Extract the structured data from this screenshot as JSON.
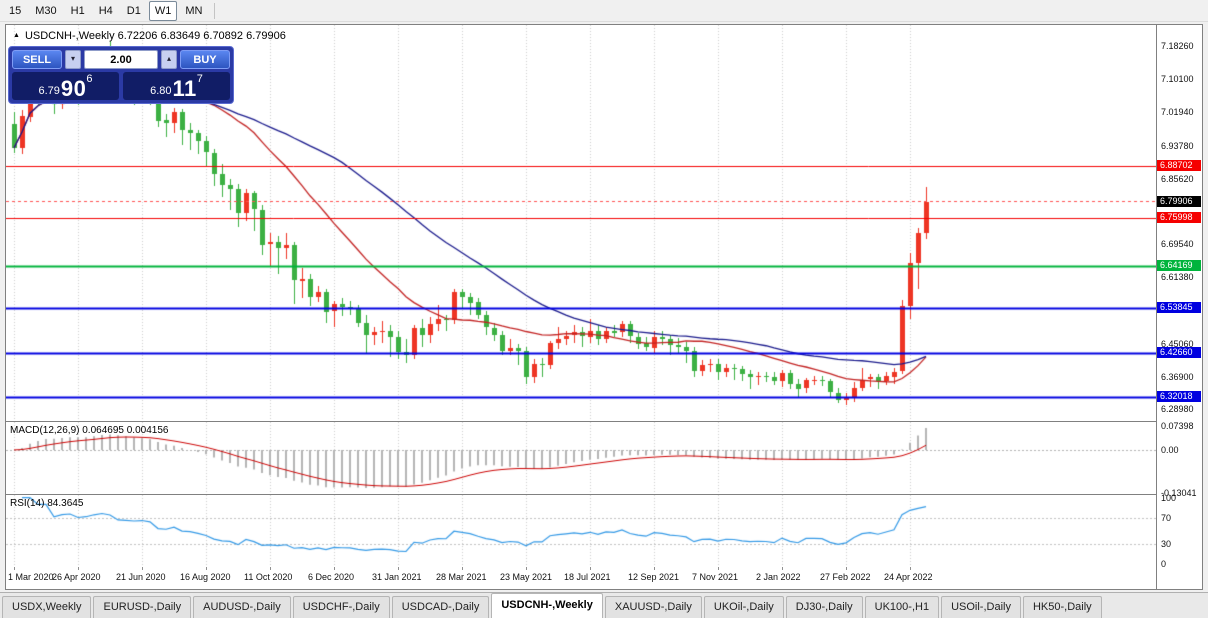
{
  "toolbar": {
    "timeframes": [
      "15",
      "M30",
      "H1",
      "H4",
      "D1",
      "W1",
      "MN"
    ],
    "active": "W1"
  },
  "chart_title": {
    "text": "USDCNH-,Weekly 6.72206 6.83649 6.70892 6.79906"
  },
  "icons": {
    "collapse_panel": "▲",
    "volume_up": "▴",
    "volume_down": "▾"
  },
  "trade_panel": {
    "sell_label": "SELL",
    "buy_label": "BUY",
    "volume": "2.00",
    "bid": {
      "head": "6.79",
      "big": "90",
      "sup": "6"
    },
    "ask": {
      "head": "6.80",
      "big": "11",
      "sup": "7"
    }
  },
  "chart_data": {
    "type": "candlestick",
    "symbol": "USDCNH-",
    "timeframe": "Weekly",
    "ohlc_current": {
      "open": "6.72206",
      "high": "6.83649",
      "low": "6.70892",
      "close": "6.79906"
    },
    "bull_color": "#ee3524",
    "bear_color": "#3cb043",
    "grid_color": "#cdcdcd",
    "price_range": {
      "max": 7.2342,
      "min": 6.2603
    },
    "bars_per_label": 8,
    "x_labels": [
      "1 Mar 2020",
      "26 Apr 2020",
      "21 Jun 2020",
      "16 Aug 2020",
      "11 Oct 2020",
      "6 Dec 2020",
      "31 Jan 2021",
      "28 Mar 2021",
      "23 May 2021",
      "18 Jul 2021",
      "12 Sep 2021",
      "7 Nov 2021",
      "2 Jan 2022",
      "27 Feb 2022",
      "24 Apr 2022"
    ],
    "y_axis_ticks": [
      "7.18260",
      "7.10100",
      "7.01940",
      "6.93780",
      "6.85620",
      "6.69540",
      "6.61380",
      "6.45060",
      "6.36900",
      "6.28980"
    ],
    "levels": [
      {
        "price": 6.88702,
        "label": "6.88702",
        "color": "#f50000",
        "width": 1
      },
      {
        "price": 6.75998,
        "label": "6.75998",
        "color": "#f50000",
        "width": 1
      },
      {
        "price": 6.64169,
        "label": "6.64169",
        "color": "#00b43c",
        "width": 2
      },
      {
        "price": 6.53845,
        "label": "6.53845",
        "color": "#0000e0",
        "width": 2
      },
      {
        "price": 6.4266,
        "label": "6.42660",
        "color": "#0000e0",
        "width": 2
      },
      {
        "price": 6.32018,
        "label": "6.32018",
        "color": "#0000e0",
        "width": 2
      }
    ],
    "current_price": {
      "price": 6.79906,
      "label": "6.79906",
      "bg": "#000000"
    },
    "ask_line": {
      "price": 6.80117,
      "color": "#ff5050"
    },
    "ma_lines": [
      {
        "name": "ma-fast",
        "period": 20,
        "color": "#c22222"
      },
      {
        "name": "ma-slow",
        "period": 40,
        "color": "#1a1a8c"
      }
    ],
    "macd": {
      "label": "MACD(12,26,9) 0.064695 0.004156",
      "params": [
        12,
        26,
        9
      ],
      "value": "0.064695",
      "signal_value": "0.004156",
      "axis": [
        "0.07398",
        "0.00",
        "-0.13041"
      ],
      "hist_color": "#b5b5b5",
      "signal_color": "#cc0000"
    },
    "rsi": {
      "label": "RSI(14) 84.3645",
      "period": 14,
      "value": "84.3645",
      "axis": [
        "100",
        "70",
        "30",
        "0"
      ],
      "levels": [
        70,
        30
      ],
      "line_color": "#3399e6"
    },
    "candles": [
      [
        6.99,
        7.02,
        6.92,
        6.932
      ],
      [
        6.932,
        7.025,
        6.918,
        7.01
      ],
      [
        7.01,
        7.164,
        6.995,
        7.11
      ],
      [
        7.11,
        7.14,
        7.035,
        7.09
      ],
      [
        7.09,
        7.13,
        7.048,
        7.092
      ],
      [
        7.092,
        7.1,
        7.015,
        7.04
      ],
      [
        7.04,
        7.085,
        7.028,
        7.07
      ],
      [
        7.07,
        7.105,
        7.052,
        7.082
      ],
      [
        7.082,
        7.095,
        7.038,
        7.06
      ],
      [
        7.06,
        7.11,
        7.048,
        7.073
      ],
      [
        7.073,
        7.135,
        7.062,
        7.11
      ],
      [
        7.11,
        7.155,
        7.092,
        7.14
      ],
      [
        7.14,
        7.196,
        7.102,
        7.128
      ],
      [
        7.128,
        7.148,
        7.058,
        7.083
      ],
      [
        7.083,
        7.1,
        7.044,
        7.078
      ],
      [
        7.078,
        7.095,
        7.038,
        7.072
      ],
      [
        7.072,
        7.096,
        7.052,
        7.08
      ],
      [
        7.08,
        7.09,
        7.038,
        7.068
      ],
      [
        7.068,
        7.076,
        6.984,
        7.0
      ],
      [
        7.0,
        7.016,
        6.958,
        6.992
      ],
      [
        6.992,
        7.03,
        6.968,
        7.02
      ],
      [
        7.02,
        7.028,
        6.938,
        6.975
      ],
      [
        6.975,
        6.992,
        6.928,
        6.968
      ],
      [
        6.968,
        6.976,
        6.918,
        6.948
      ],
      [
        6.948,
        6.96,
        6.888,
        6.92
      ],
      [
        6.92,
        6.93,
        6.838,
        6.868
      ],
      [
        6.868,
        6.892,
        6.812,
        6.84
      ],
      [
        6.84,
        6.856,
        6.778,
        6.83
      ],
      [
        6.83,
        6.842,
        6.738,
        6.77
      ],
      [
        6.77,
        6.832,
        6.752,
        6.82
      ],
      [
        6.82,
        6.826,
        6.728,
        6.78
      ],
      [
        6.78,
        6.792,
        6.668,
        6.695
      ],
      [
        6.695,
        6.722,
        6.638,
        6.7
      ],
      [
        6.7,
        6.716,
        6.622,
        6.685
      ],
      [
        6.685,
        6.722,
        6.658,
        6.692
      ],
      [
        6.692,
        6.7,
        6.548,
        6.605
      ],
      [
        6.605,
        6.636,
        6.562,
        6.61
      ],
      [
        6.61,
        6.622,
        6.542,
        6.565
      ],
      [
        6.565,
        6.592,
        6.552,
        6.578
      ],
      [
        6.578,
        6.586,
        6.502,
        6.53
      ],
      [
        6.53,
        6.556,
        6.492,
        6.548
      ],
      [
        6.548,
        6.562,
        6.518,
        6.54
      ],
      [
        6.54,
        6.556,
        6.522,
        6.538
      ],
      [
        6.538,
        6.546,
        6.492,
        6.502
      ],
      [
        6.502,
        6.52,
        6.428,
        6.472
      ],
      [
        6.472,
        6.492,
        6.448,
        6.48
      ],
      [
        6.48,
        6.506,
        6.452,
        6.482
      ],
      [
        6.482,
        6.496,
        6.418,
        6.468
      ],
      [
        6.468,
        6.482,
        6.412,
        6.43
      ],
      [
        6.43,
        6.462,
        6.402,
        6.422
      ],
      [
        6.422,
        6.496,
        6.412,
        6.488
      ],
      [
        6.488,
        6.512,
        6.442,
        6.472
      ],
      [
        6.472,
        6.516,
        6.452,
        6.498
      ],
      [
        6.498,
        6.546,
        6.482,
        6.51
      ],
      [
        6.51,
        6.522,
        6.482,
        6.508
      ],
      [
        6.508,
        6.586,
        6.498,
        6.578
      ],
      [
        6.578,
        6.586,
        6.538,
        6.566
      ],
      [
        6.566,
        6.576,
        6.522,
        6.552
      ],
      [
        6.552,
        6.562,
        6.512,
        6.52
      ],
      [
        6.52,
        6.532,
        6.472,
        6.49
      ],
      [
        6.49,
        6.502,
        6.458,
        6.472
      ],
      [
        6.472,
        6.482,
        6.422,
        6.432
      ],
      [
        6.432,
        6.462,
        6.422,
        6.44
      ],
      [
        6.44,
        6.45,
        6.398,
        6.432
      ],
      [
        6.432,
        6.442,
        6.352,
        6.368
      ],
      [
        6.368,
        6.414,
        6.354,
        6.4
      ],
      [
        6.4,
        6.416,
        6.368,
        6.398
      ],
      [
        6.398,
        6.456,
        6.388,
        6.452
      ],
      [
        6.452,
        6.492,
        6.438,
        6.462
      ],
      [
        6.462,
        6.482,
        6.448,
        6.47
      ],
      [
        6.47,
        6.496,
        6.452,
        6.478
      ],
      [
        6.478,
        6.492,
        6.442,
        6.468
      ],
      [
        6.468,
        6.512,
        6.452,
        6.482
      ],
      [
        6.482,
        6.496,
        6.448,
        6.462
      ],
      [
        6.462,
        6.492,
        6.452,
        6.482
      ],
      [
        6.482,
        6.496,
        6.468,
        6.478
      ],
      [
        6.478,
        6.506,
        6.468,
        6.498
      ],
      [
        6.498,
        6.506,
        6.452,
        6.468
      ],
      [
        6.468,
        6.476,
        6.438,
        6.452
      ],
      [
        6.452,
        6.466,
        6.432,
        6.442
      ],
      [
        6.442,
        6.482,
        6.428,
        6.468
      ],
      [
        6.468,
        6.482,
        6.448,
        6.462
      ],
      [
        6.462,
        6.472,
        6.422,
        6.448
      ],
      [
        6.448,
        6.464,
        6.428,
        6.442
      ],
      [
        6.442,
        6.454,
        6.402,
        6.432
      ],
      [
        6.432,
        6.442,
        6.368,
        6.384
      ],
      [
        6.384,
        6.41,
        6.372,
        6.398
      ],
      [
        6.398,
        6.414,
        6.382,
        6.4
      ],
      [
        6.4,
        6.412,
        6.362,
        6.38
      ],
      [
        6.38,
        6.4,
        6.368,
        6.39
      ],
      [
        6.39,
        6.4,
        6.362,
        6.388
      ],
      [
        6.388,
        6.396,
        6.358,
        6.376
      ],
      [
        6.376,
        6.386,
        6.338,
        6.368
      ],
      [
        6.368,
        6.38,
        6.35,
        6.37
      ],
      [
        6.37,
        6.38,
        6.356,
        6.368
      ],
      [
        6.368,
        6.38,
        6.35,
        6.358
      ],
      [
        6.358,
        6.386,
        6.344,
        6.378
      ],
      [
        6.378,
        6.386,
        6.338,
        6.352
      ],
      [
        6.352,
        6.364,
        6.32,
        6.34
      ],
      [
        6.34,
        6.366,
        6.328,
        6.36
      ],
      [
        6.36,
        6.37,
        6.348,
        6.36
      ],
      [
        6.36,
        6.372,
        6.346,
        6.358
      ],
      [
        6.358,
        6.364,
        6.318,
        6.33
      ],
      [
        6.33,
        6.342,
        6.304,
        6.312
      ],
      [
        6.312,
        6.33,
        6.3,
        6.318
      ],
      [
        6.318,
        6.356,
        6.306,
        6.342
      ],
      [
        6.342,
        6.39,
        6.334,
        6.362
      ],
      [
        6.362,
        6.376,
        6.344,
        6.368
      ],
      [
        6.368,
        6.376,
        6.338,
        6.358
      ],
      [
        6.358,
        6.38,
        6.348,
        6.37
      ],
      [
        6.37,
        6.39,
        6.352,
        6.382
      ],
      [
        6.382,
        6.558,
        6.376,
        6.542
      ],
      [
        6.542,
        6.674,
        6.51,
        6.648
      ],
      [
        6.648,
        6.736,
        6.584,
        6.722
      ],
      [
        6.72206,
        6.83649,
        6.70892,
        6.79906
      ]
    ]
  },
  "tabs": [
    {
      "label": "USDX,Weekly",
      "active": false
    },
    {
      "label": "EURUSD-,Daily",
      "active": false
    },
    {
      "label": "AUDUSD-,Daily",
      "active": false
    },
    {
      "label": "USDCHF-,Daily",
      "active": false
    },
    {
      "label": "USDCAD-,Daily",
      "active": false
    },
    {
      "label": "USDCNH-,Weekly",
      "active": true
    },
    {
      "label": "XAUUSD-,Daily",
      "active": false
    },
    {
      "label": "UKOil-,Daily",
      "active": false
    },
    {
      "label": "DJ30-,Daily",
      "active": false
    },
    {
      "label": "UK100-,H1",
      "active": false
    },
    {
      "label": "USOil-,Daily",
      "active": false
    },
    {
      "label": "HK50-,Daily",
      "active": false
    }
  ]
}
